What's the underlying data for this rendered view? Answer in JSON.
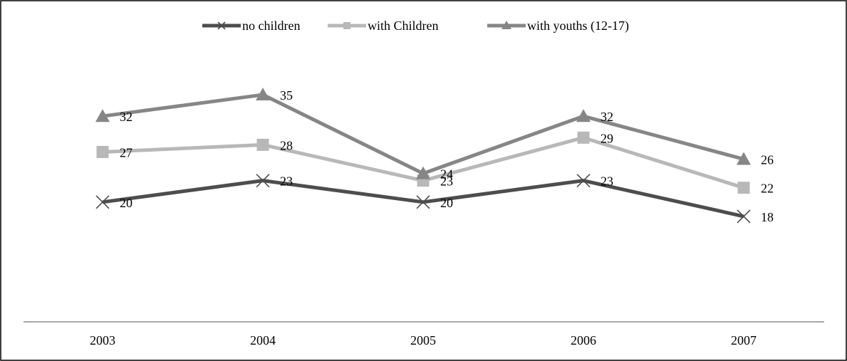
{
  "chart_data": {
    "type": "line",
    "title": "",
    "xlabel": "",
    "ylabel": "",
    "categories": [
      "2003",
      "2004",
      "2005",
      "2006",
      "2007"
    ],
    "series": [
      {
        "name": "no children",
        "values": [
          20,
          23,
          20,
          23,
          18
        ],
        "color": "#4d4d4d",
        "marker": "x"
      },
      {
        "name": "with Children",
        "values": [
          27,
          28,
          23,
          29,
          22
        ],
        "color": "#b8b8b8",
        "marker": "square"
      },
      {
        "name": "with youths (12-17)",
        "values": [
          32,
          35,
          24,
          32,
          26
        ],
        "color": "#868686",
        "marker": "triangle"
      }
    ],
    "legend": "top-center",
    "grid": false,
    "data_labels": true
  }
}
